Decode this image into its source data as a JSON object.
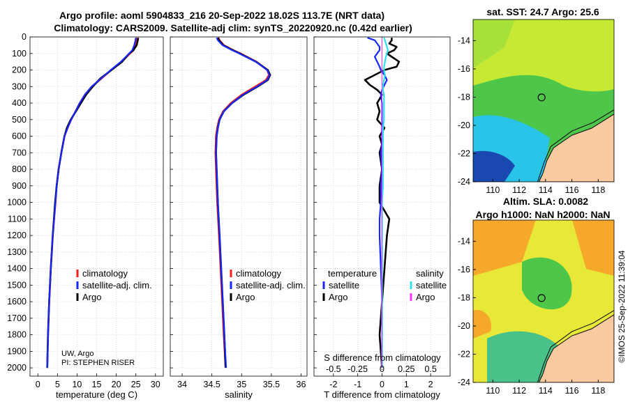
{
  "title": {
    "line1": "Argo profile: aoml 5904833_216 20-Sep-2022 18.02S 113.7E (NRT data)",
    "line2": "Climatology: CARS2009. Satellite-adj clim: synTS_20220920.nc (0.42d earlier)"
  },
  "maps": {
    "sst_title": "sat. SST: 24.7 Argo: 25.6",
    "sla_title_1": "Altim. SLA: 0.0082",
    "sla_title_2": "Argo h1000: NaN h2000: NaN",
    "lat_ticks": [
      "-14",
      "-16",
      "-18",
      "-20",
      "-22",
      "-24"
    ],
    "lon_ticks": [
      "110",
      "112",
      "114",
      "116",
      "118"
    ],
    "float_position": {
      "lon": 113.7,
      "lat": -18.02
    },
    "colors": {
      "land": "#f9c9a0",
      "coast": "#000000",
      "warm": "#f5a82a",
      "green": "#4ec64a",
      "cyan": "#2ac4e8",
      "blue": "#1848b0",
      "yellow": "#d8e830"
    }
  },
  "copyright": "©IMOS 25-Sep-2022 11:39:04",
  "notes": {
    "line1": "UW, Argo",
    "line2": "PI: STEPHEN RISER"
  },
  "colors": {
    "climatology": "#ff1a1a",
    "satellite": "#1428ff",
    "argo": "#000000",
    "t_satellite": "#1428ff",
    "s_satellite": "#30e0ee",
    "s_argo": "#ff30ff"
  },
  "chart_data": [
    {
      "type": "line",
      "title": "",
      "xlabel": "temperature (deg C)",
      "ylabel": "",
      "xlim": [
        -2,
        32
      ],
      "ylim": [
        2050,
        0
      ],
      "xticks": [
        "0",
        "5",
        "10",
        "15",
        "20",
        "25",
        "30"
      ],
      "yticks": [
        "0",
        "100",
        "200",
        "300",
        "400",
        "500",
        "600",
        "700",
        "800",
        "900",
        "1000",
        "1100",
        "1200",
        "1300",
        "1400",
        "1500",
        "1600",
        "1700",
        "1800",
        "1900",
        "2000"
      ],
      "legend": [
        "climatology",
        "satellite-adj. clim.",
        "Argo"
      ],
      "depth": [
        5,
        20,
        50,
        80,
        100,
        150,
        200,
        250,
        300,
        350,
        400,
        450,
        500,
        550,
        600,
        700,
        800,
        900,
        1000,
        1200,
        1400,
        1600,
        1800,
        2000
      ],
      "series": [
        {
          "name": "climatology",
          "values": [
            25.2,
            25.1,
            24.9,
            24.4,
            23.5,
            21.4,
            18.7,
            16.3,
            13.8,
            12.0,
            10.7,
            9.6,
            8.5,
            7.6,
            6.8,
            6.0,
            5.3,
            4.8,
            4.5,
            3.8,
            3.3,
            2.9,
            2.6,
            2.4
          ]
        },
        {
          "name": "satellite-adj. clim.",
          "values": [
            25.0,
            24.9,
            24.6,
            24.1,
            23.3,
            21.2,
            18.6,
            16.2,
            13.7,
            12.0,
            10.7,
            9.6,
            8.5,
            7.6,
            6.8,
            6.0,
            5.3,
            4.8,
            4.5,
            3.8,
            3.3,
            2.9,
            2.6,
            2.4
          ]
        },
        {
          "name": "Argo",
          "values": [
            25.6,
            25.5,
            25.2,
            24.4,
            23.3,
            21.5,
            18.8,
            16.0,
            14.0,
            12.3,
            11.0,
            9.7,
            8.4,
            7.4,
            6.8,
            6.0,
            5.3,
            4.8,
            4.4,
            3.8,
            3.3,
            2.9,
            2.6,
            2.4
          ]
        }
      ]
    },
    {
      "type": "line",
      "title": "",
      "xlabel": "salinity",
      "ylabel": "",
      "xlim": [
        33.8,
        36.1
      ],
      "ylim": [
        2050,
        0
      ],
      "xticks": [
        "34",
        "34.5",
        "35",
        "35.5",
        "36"
      ],
      "legend": [
        "climatology",
        "satellite-adj. clim.",
        "Argo"
      ],
      "depth": [
        5,
        20,
        50,
        80,
        100,
        150,
        200,
        230,
        260,
        300,
        350,
        400,
        450,
        500,
        550,
        600,
        700,
        800,
        1000,
        1200,
        1500,
        1800,
        2000
      ],
      "series": [
        {
          "name": "climatology",
          "values": [
            34.61,
            34.63,
            34.7,
            34.86,
            34.98,
            35.25,
            35.43,
            35.46,
            35.41,
            35.23,
            35.0,
            34.82,
            34.69,
            34.62,
            34.59,
            34.57,
            34.56,
            34.57,
            34.59,
            34.62,
            34.66,
            34.7,
            34.73
          ]
        },
        {
          "name": "satellite-adj. clim.",
          "values": [
            34.58,
            34.6,
            34.68,
            34.84,
            34.96,
            35.24,
            35.43,
            35.47,
            35.43,
            35.26,
            35.02,
            34.84,
            34.7,
            34.63,
            34.6,
            34.58,
            34.57,
            34.58,
            34.6,
            34.63,
            34.67,
            34.71,
            34.74
          ]
        },
        {
          "name": "Argo",
          "values": [
            34.6,
            34.62,
            34.69,
            34.85,
            34.97,
            35.24,
            35.44,
            35.48,
            35.44,
            35.27,
            35.03,
            34.84,
            34.7,
            34.63,
            34.6,
            34.58,
            34.57,
            34.58,
            34.6,
            34.63,
            34.67,
            34.71,
            34.73
          ]
        }
      ]
    },
    {
      "type": "line",
      "title": "",
      "xlabel": "T difference from climatology",
      "xlabel_top": "S difference from climatology",
      "ylabel": "",
      "xlim": [
        -2.8,
        2.8
      ],
      "xlim_s": [
        -0.7,
        0.7
      ],
      "ylim": [
        2050,
        0
      ],
      "xticks": [
        "-2",
        "-1",
        "0",
        "1",
        "2"
      ],
      "xticks_s": [
        "-0.5",
        "-0.25",
        "0",
        "0.25",
        "0.5"
      ],
      "legend_headers": [
        "temperature",
        "salinity"
      ],
      "legend_left": [
        "satellite",
        "Argo"
      ],
      "legend_right": [
        "satellite",
        "Argo"
      ],
      "depth": [
        5,
        20,
        40,
        60,
        80,
        100,
        120,
        150,
        180,
        200,
        230,
        260,
        290,
        320,
        350,
        400,
        450,
        500,
        550,
        600,
        650,
        700,
        800,
        900,
        1000,
        1100,
        1200,
        1400,
        1600,
        1800,
        2000
      ],
      "series": [
        {
          "name": "temperature satellite",
          "values": [
            -0.6,
            -0.3,
            -0.2,
            -0.1,
            -0.1,
            -0.2,
            -0.3,
            -0.2,
            -0.1,
            -0.05,
            0.1,
            0.2,
            0.1,
            0.0,
            -0.05,
            0.0,
            0.0,
            0.0,
            0.0,
            0.0,
            0.0,
            -0.05,
            0.0,
            -0.05,
            -0.05,
            -0.1,
            -0.1,
            -0.05,
            0.0,
            0.0,
            0.0
          ]
        },
        {
          "name": "temperature Argo",
          "values": [
            0.4,
            0.4,
            0.3,
            0.6,
            0.5,
            0.2,
            0.4,
            0.7,
            0.6,
            0.1,
            -0.3,
            -0.7,
            -0.5,
            -0.2,
            0.0,
            -0.2,
            -0.1,
            -0.2,
            0.1,
            -0.1,
            0.0,
            -0.1,
            0.0,
            -0.1,
            -0.1,
            0.3,
            0.2,
            0.1,
            0.0,
            -0.1,
            0.0
          ]
        },
        {
          "name": "salinity satellite",
          "values": [
            0.02,
            0.03,
            0.04,
            0.05,
            0.06,
            0.05,
            0.04,
            0.03,
            0.02,
            0.02,
            0.03,
            0.02,
            0.01,
            0.01,
            0.02,
            0.02,
            0.02,
            0.02,
            0.01,
            0.01,
            0.01,
            0.01,
            0.01,
            0.01,
            0.0,
            0.0,
            0.0,
            0.0,
            0.0,
            0.0,
            0.0
          ]
        },
        {
          "name": "salinity Argo",
          "values": [
            0.0,
            0.0,
            0.0,
            0.0,
            0.0,
            0.0,
            0.0,
            0.0,
            0.0,
            0.0,
            0.0,
            0.0,
            0.0,
            0.0,
            0.0,
            0.0,
            0.0,
            0.0,
            0.0,
            0.0,
            0.0,
            0.0,
            0.0,
            0.0,
            0.0,
            0.0,
            0.0,
            0.0,
            0.0,
            0.0,
            0.0
          ]
        }
      ]
    }
  ]
}
